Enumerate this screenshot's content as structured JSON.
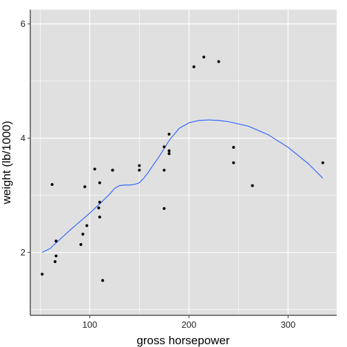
{
  "chart_data": {
    "type": "scatter",
    "title": "",
    "xlabel": "gross horsepower",
    "ylabel": "weight (lb/1000)",
    "xlim": [
      40,
      349
    ],
    "ylim": [
      0.9,
      6.25
    ],
    "x_ticks": [
      100,
      200,
      300
    ],
    "x_tick_labels": [
      "100",
      "200",
      "300"
    ],
    "y_ticks": [
      2,
      4,
      6
    ],
    "y_tick_labels": [
      "2",
      "4",
      "6"
    ],
    "grid": true,
    "legend": "none",
    "colors": {
      "panel_background": "#e0e0e0",
      "grid": "#ffffff",
      "points": "#000000",
      "smooth_line": "#3366ff"
    },
    "series": [
      {
        "type": "points",
        "x": [
          52,
          62,
          65,
          66,
          66,
          91,
          93,
          95,
          97,
          105,
          109,
          110,
          110,
          110,
          113,
          123,
          123,
          150,
          150,
          175,
          175,
          175,
          180,
          180,
          180,
          205,
          215,
          230,
          245,
          245,
          264,
          335
        ],
        "y": [
          1.62,
          3.19,
          1.84,
          1.94,
          2.2,
          2.14,
          2.32,
          3.15,
          2.47,
          3.46,
          2.78,
          2.62,
          2.88,
          3.22,
          1.51,
          3.44,
          3.44,
          3.44,
          3.52,
          2.77,
          3.44,
          3.85,
          3.73,
          3.78,
          4.07,
          5.25,
          5.42,
          5.34,
          3.84,
          3.57,
          3.17,
          3.57
        ]
      },
      {
        "type": "smooth",
        "x": [
          52,
          60,
          70,
          80,
          90,
          100,
          110,
          120,
          125,
          130,
          135,
          140,
          145,
          150,
          155,
          160,
          170,
          180,
          190,
          200,
          210,
          220,
          230,
          240,
          260,
          280,
          300,
          320,
          335
        ],
        "y": [
          2.0,
          2.07,
          2.23,
          2.39,
          2.54,
          2.69,
          2.85,
          3.02,
          3.12,
          3.17,
          3.18,
          3.18,
          3.19,
          3.22,
          3.31,
          3.43,
          3.68,
          3.96,
          4.17,
          4.27,
          4.31,
          4.32,
          4.31,
          4.29,
          4.21,
          4.06,
          3.84,
          3.56,
          3.3
        ]
      }
    ]
  }
}
